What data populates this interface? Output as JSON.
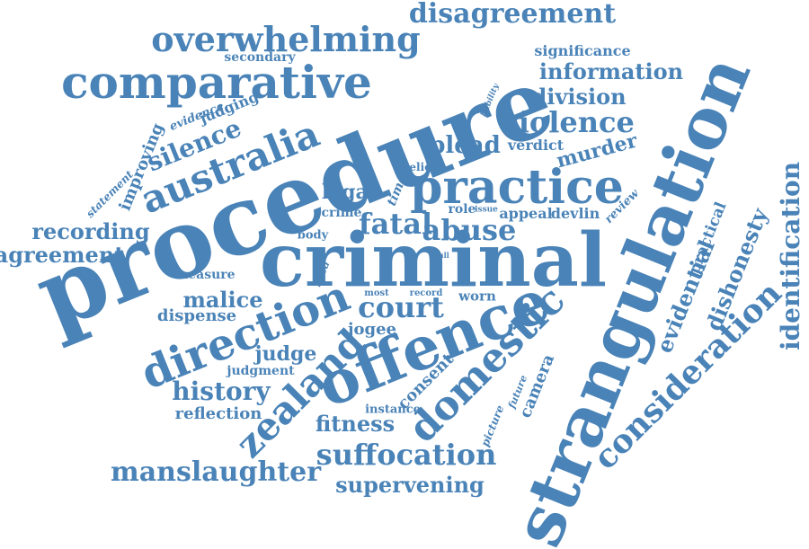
{
  "palette": {
    "word_color": "#4a83b7",
    "background": "#ffffff"
  },
  "words": {
    "procedure": "procedure",
    "criminal": "criminal",
    "strangulation": "strangulation",
    "offence": "offence",
    "practice": "practice",
    "comparative": "comparative",
    "direction": "direction",
    "consideration": "consideration",
    "domestic": "domestic",
    "australia": "australia",
    "zealand": "zealand",
    "overwhelming": "overwhelming",
    "disagreement": "disagreement",
    "violence": "violence",
    "fatal": "fatal",
    "abuse": "abuse",
    "court": "court",
    "information": "information",
    "division": "division",
    "significance": "significance",
    "secondary": "secondary",
    "plead": "plead",
    "verdict": "verdict",
    "murder": "murder",
    "silence": "silence",
    "judging": "judging",
    "evidence": "evidence",
    "improving": "improving",
    "statement": "statement",
    "liability": "liability",
    "belief": "belief",
    "time": "time",
    "legal": "legal",
    "crime": "crime",
    "role": "role",
    "issue": "issue",
    "appeal": "appeal",
    "devlin": "devlin",
    "review": "review",
    "identification": "identification",
    "dishonesty": "dishonesty",
    "practical": "practical",
    "evidential": "evidential",
    "recording": "recording",
    "agreement": "agreement",
    "body": "body",
    "measure": "measure",
    "need": "need",
    "full": "full",
    "malice": "malice",
    "most": "most",
    "record": "record",
    "worn": "worn",
    "dispense": "dispense",
    "jogee": "jogee",
    "judge": "judge",
    "judgment": "judgment",
    "history": "history",
    "consent": "consent",
    "camera": "camera",
    "future": "future",
    "reflection": "reflection",
    "instance": "instance",
    "picture": "picture",
    "fitness": "fitness",
    "suffocation": "suffocation",
    "manslaughter": "manslaughter",
    "supervening": "supervening"
  }
}
